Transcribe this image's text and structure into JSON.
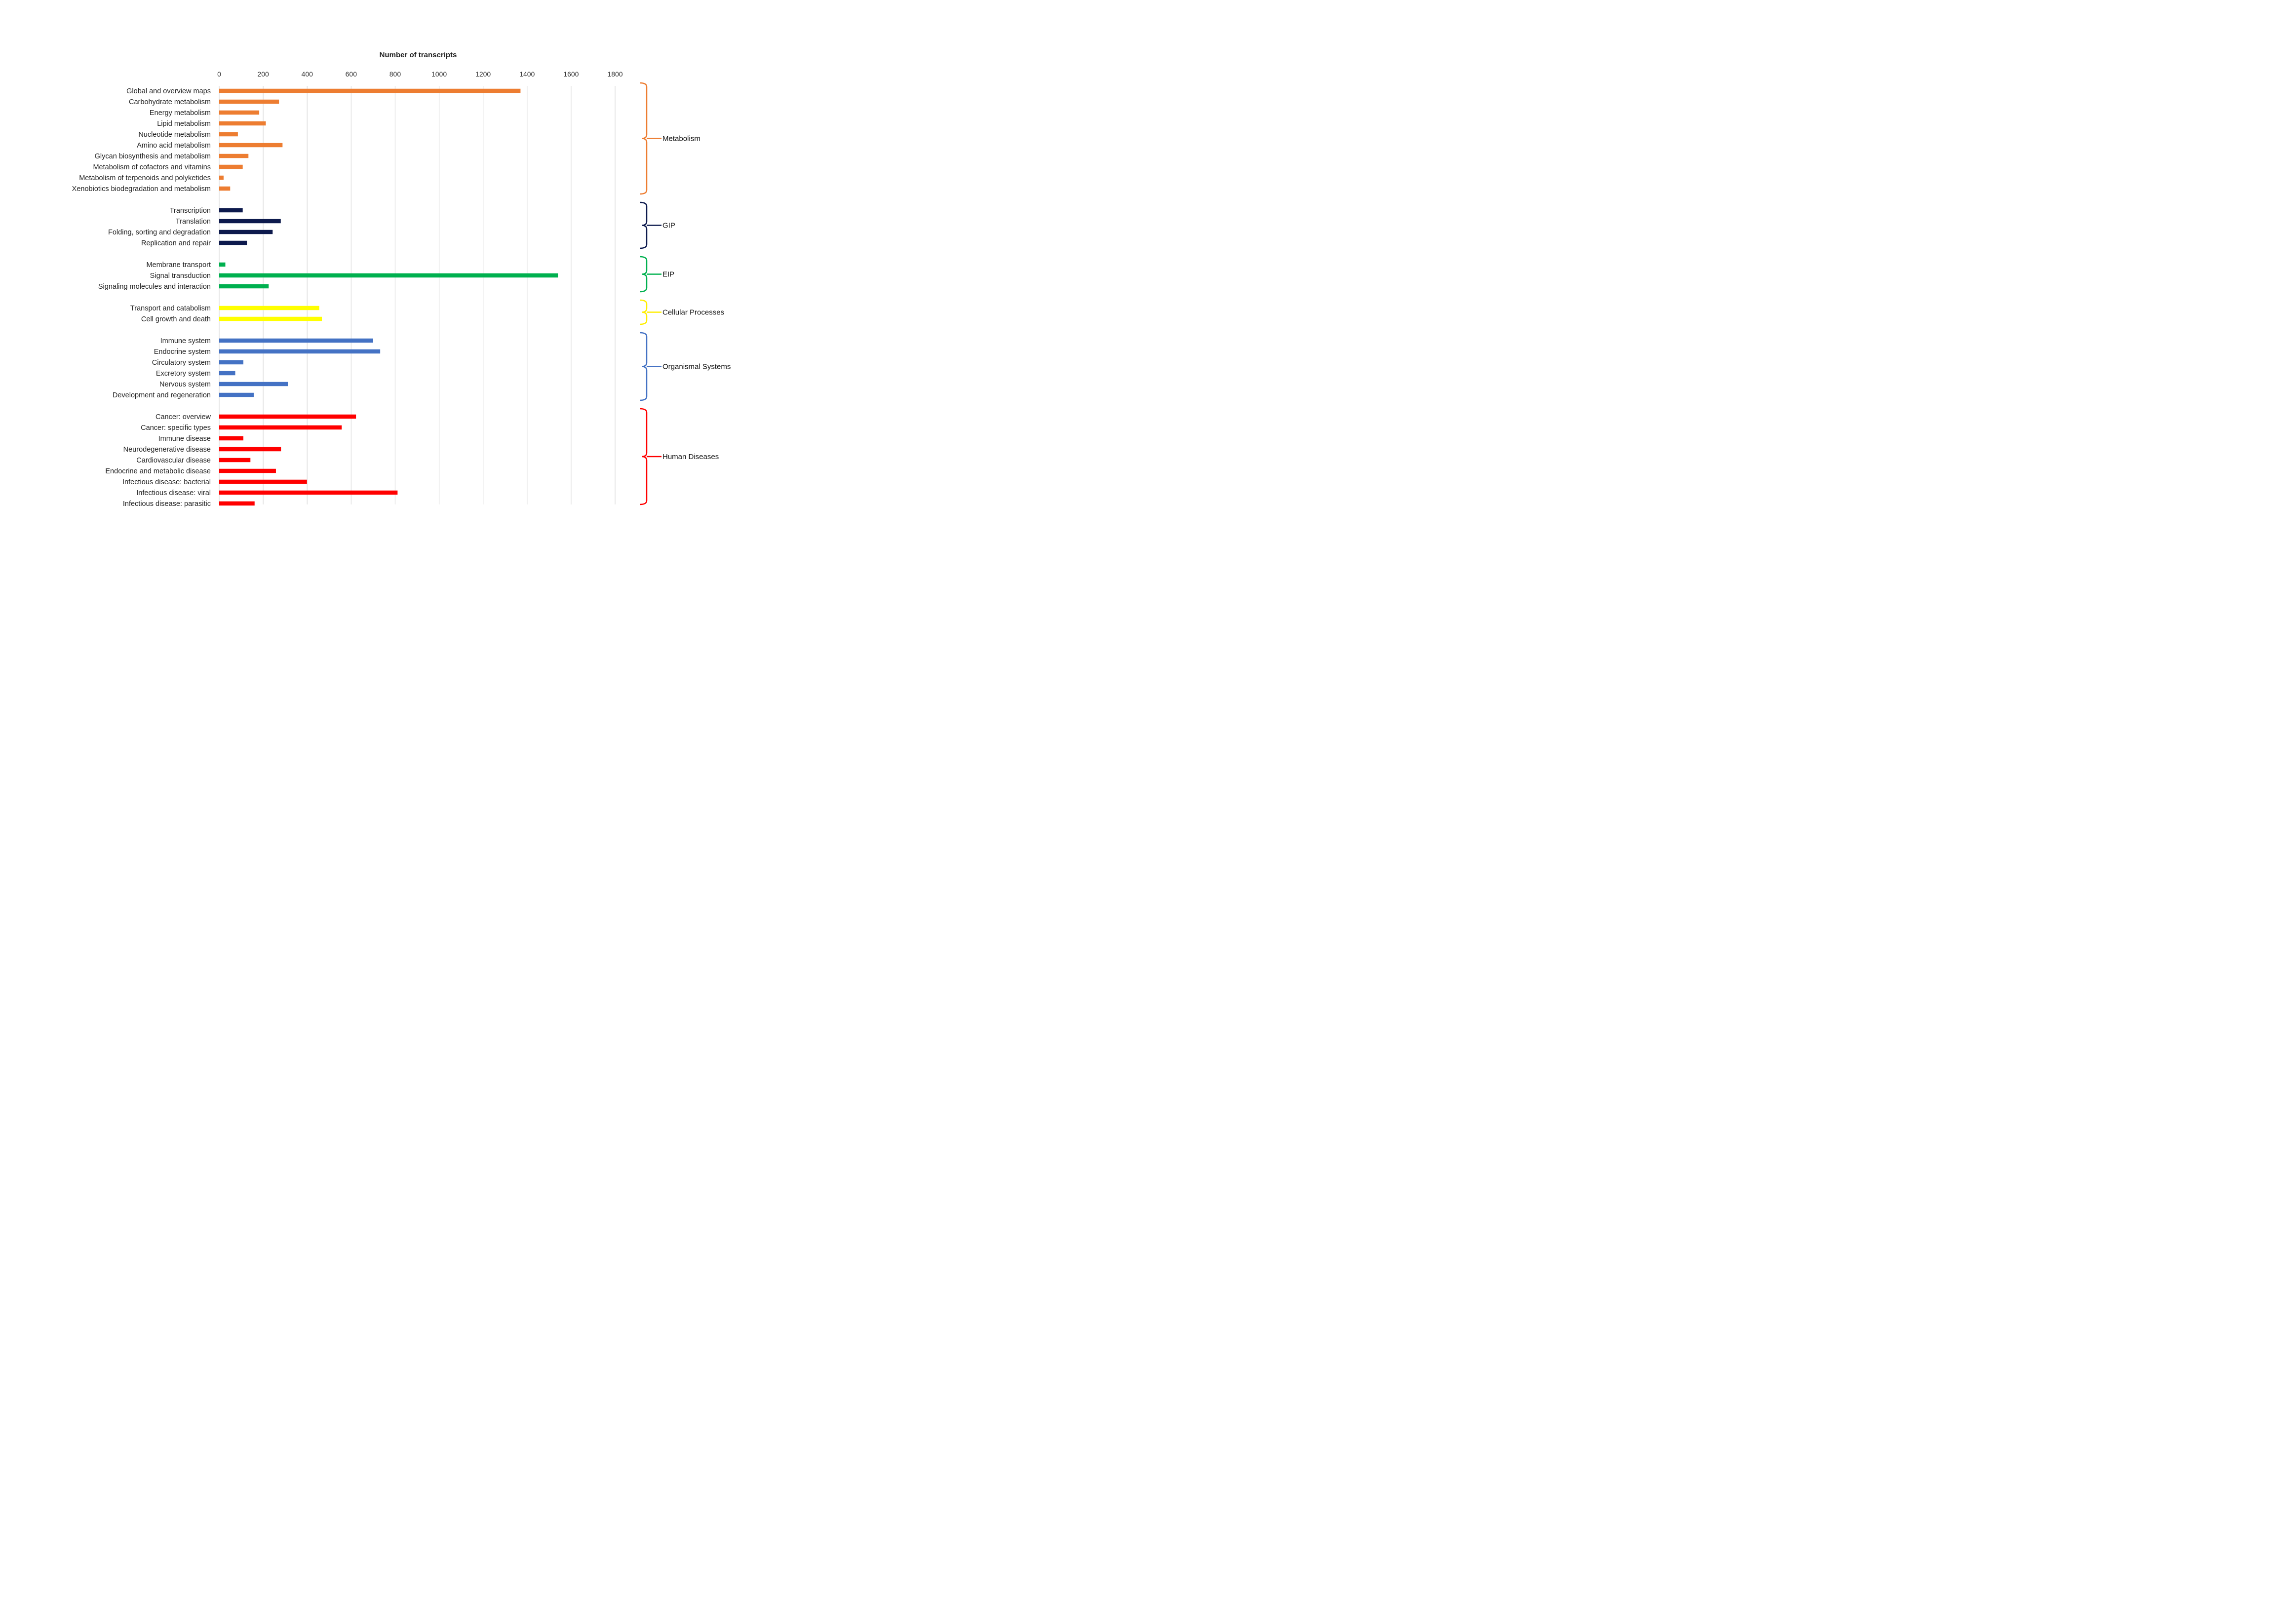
{
  "chart_data": {
    "type": "bar",
    "orientation": "horizontal",
    "xlabel": "Number of transcripts",
    "xlim": [
      0,
      1800
    ],
    "xticks": [
      0,
      200,
      400,
      600,
      800,
      1000,
      1200,
      1400,
      1600,
      1800
    ],
    "grid": true,
    "groups": [
      {
        "name": "Metabolism",
        "color": "#ED7D31",
        "categories": [
          "Global and overview maps",
          "Carbohydrate metabolism",
          "Energy metabolism",
          "Lipid metabolism",
          "Nucleotide metabolism",
          "Amino acid metabolism",
          "Glycan biosynthesis and metabolism",
          "Metabolism of cofactors and vitamins",
          "Metabolism of terpenoids and polyketides",
          "Xenobiotics biodegradation and metabolism"
        ],
        "values": [
          1370,
          272,
          182,
          212,
          85,
          288,
          133,
          107,
          20,
          50
        ]
      },
      {
        "name": "GIP",
        "color": "#0D1A4D",
        "categories": [
          "Transcription",
          "Translation",
          "Folding, sorting and degradation",
          "Replication and repair"
        ],
        "values": [
          107,
          280,
          243,
          126
        ]
      },
      {
        "name": "EIP",
        "color": "#00B04F",
        "categories": [
          "Membrane transport",
          "Signal transduction",
          "Signaling molecules and interaction"
        ],
        "values": [
          28,
          1540,
          225
        ]
      },
      {
        "name": "Cellular Processes",
        "color": "#FFFF00",
        "categories": [
          "Transport and catabolism",
          "Cell growth and death"
        ],
        "values": [
          455,
          467
        ]
      },
      {
        "name": "Organismal Systems",
        "color": "#4472C4",
        "categories": [
          "Immune system",
          "Endocrine system",
          "Circulatory system",
          "Excretory system",
          "Nervous system",
          "Development and regeneration"
        ],
        "values": [
          700,
          732,
          110,
          73,
          312,
          157
        ]
      },
      {
        "name": "Human Diseases",
        "color": "#FF0000",
        "categories": [
          "Cancer: overview",
          "Cancer: specific types",
          "Immune disease",
          "Neurodegenerative disease",
          "Cardiovascular disease",
          "Endocrine and metabolic disease",
          "Infectious disease: bacterial",
          "Infectious disease: viral",
          "Infectious disease: parasitic"
        ],
        "values": [
          622,
          557,
          110,
          281,
          142,
          258,
          399,
          811,
          161
        ]
      }
    ]
  }
}
